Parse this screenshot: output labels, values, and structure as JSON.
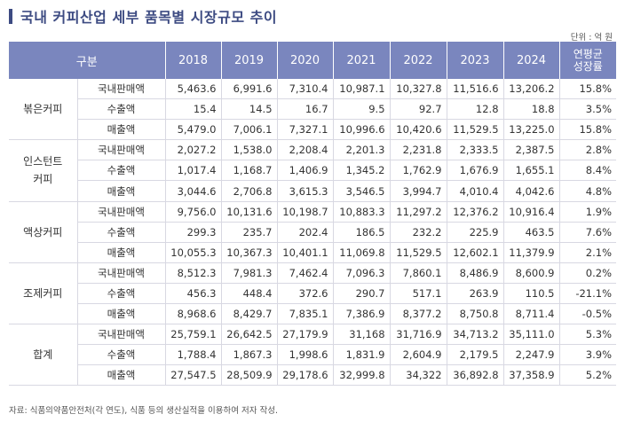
{
  "title": "국내 커피산업 세부 품목별 시장규모 추이",
  "unit": "단위 : 억 원",
  "table": {
    "category_header": "구분",
    "years": [
      "2018",
      "2019",
      "2020",
      "2021",
      "2022",
      "2023",
      "2024"
    ],
    "growth_header_line1": "연평균",
    "growth_header_line2": "성장률",
    "groups": [
      {
        "lines": [
          "볶은커피"
        ],
        "rows": [
          {
            "label": "국내판매액",
            "values": [
              "5,463.6",
              "6,991.6",
              "7,310.4",
              "10,987.1",
              "10,327.8",
              "11,516.6",
              "13,206.2"
            ],
            "growth": "15.8%"
          },
          {
            "label": "수출액",
            "values": [
              "15.4",
              "14.5",
              "16.7",
              "9.5",
              "92.7",
              "12.8",
              "18.8"
            ],
            "growth": "3.5%"
          },
          {
            "label": "매출액",
            "values": [
              "5,479.0",
              "7,006.1",
              "7,327.1",
              "10,996.6",
              "10,420.6",
              "11,529.5",
              "13,225.0"
            ],
            "growth": "15.8%"
          }
        ]
      },
      {
        "lines": [
          "인스턴트",
          "커피"
        ],
        "rows": [
          {
            "label": "국내판매액",
            "values": [
              "2,027.2",
              "1,538.0",
              "2,208.4",
              "2,201.3",
              "2,231.8",
              "2,333.5",
              "2,387.5"
            ],
            "growth": "2.8%"
          },
          {
            "label": "수출액",
            "values": [
              "1,017.4",
              "1,168.7",
              "1,406.9",
              "1,345.2",
              "1,762.9",
              "1,676.9",
              "1,655.1"
            ],
            "growth": "8.4%"
          },
          {
            "label": "매출액",
            "values": [
              "3,044.6",
              "2,706.8",
              "3,615.3",
              "3,546.5",
              "3,994.7",
              "4,010.4",
              "4,042.6"
            ],
            "growth": "4.8%"
          }
        ]
      },
      {
        "lines": [
          "액상커피"
        ],
        "rows": [
          {
            "label": "국내판매액",
            "values": [
              "9,756.0",
              "10,131.6",
              "10,198.7",
              "10,883.3",
              "11,297.2",
              "12,376.2",
              "10,916.4"
            ],
            "growth": "1.9%"
          },
          {
            "label": "수출액",
            "values": [
              "299.3",
              "235.7",
              "202.4",
              "186.5",
              "232.2",
              "225.9",
              "463.5"
            ],
            "growth": "7.6%"
          },
          {
            "label": "매출액",
            "values": [
              "10,055.3",
              "10,367.3",
              "10,401.1",
              "11,069.8",
              "11,529.5",
              "12,602.1",
              "11,379.9"
            ],
            "growth": "2.1%"
          }
        ]
      },
      {
        "lines": [
          "조제커피"
        ],
        "rows": [
          {
            "label": "국내판매액",
            "values": [
              "8,512.3",
              "7,981.3",
              "7,462.4",
              "7,096.3",
              "7,860.1",
              "8,486.9",
              "8,600.9"
            ],
            "growth": "0.2%"
          },
          {
            "label": "수출액",
            "values": [
              "456.3",
              "448.4",
              "372.6",
              "290.7",
              "517.1",
              "263.9",
              "110.5"
            ],
            "growth": "-21.1%"
          },
          {
            "label": "매출액",
            "values": [
              "8,968.6",
              "8,429.7",
              "7,835.1",
              "7,386.9",
              "8,377.2",
              "8,750.8",
              "8,711.4"
            ],
            "growth": "-0.5%"
          }
        ]
      },
      {
        "lines": [
          "합계"
        ],
        "rows": [
          {
            "label": "국내판매액",
            "values": [
              "25,759.1",
              "26,642.5",
              "27,179.9",
              "31,168",
              "31,716.9",
              "34,713.2",
              "35,111.0"
            ],
            "growth": "5.3%"
          },
          {
            "label": "수출액",
            "values": [
              "1,788.4",
              "1,867.3",
              "1,998.6",
              "1,831.9",
              "2,604.9",
              "2,179.5",
              "2,247.9"
            ],
            "growth": "3.9%"
          },
          {
            "label": "매출액",
            "values": [
              "27,547.5",
              "28,509.9",
              "29,178.6",
              "32,999.8",
              "34,322",
              "36,892.8",
              "37,358.9"
            ],
            "growth": "5.2%"
          }
        ]
      }
    ]
  },
  "footnote": "자료: 식품의약품안전처(각 연도), 식품 등의 생산실적을 이용하여 저자 작성.",
  "colors": {
    "header_bg": "#7a86be",
    "title": "#3d4b82",
    "row_border": "#d8d8e2"
  }
}
